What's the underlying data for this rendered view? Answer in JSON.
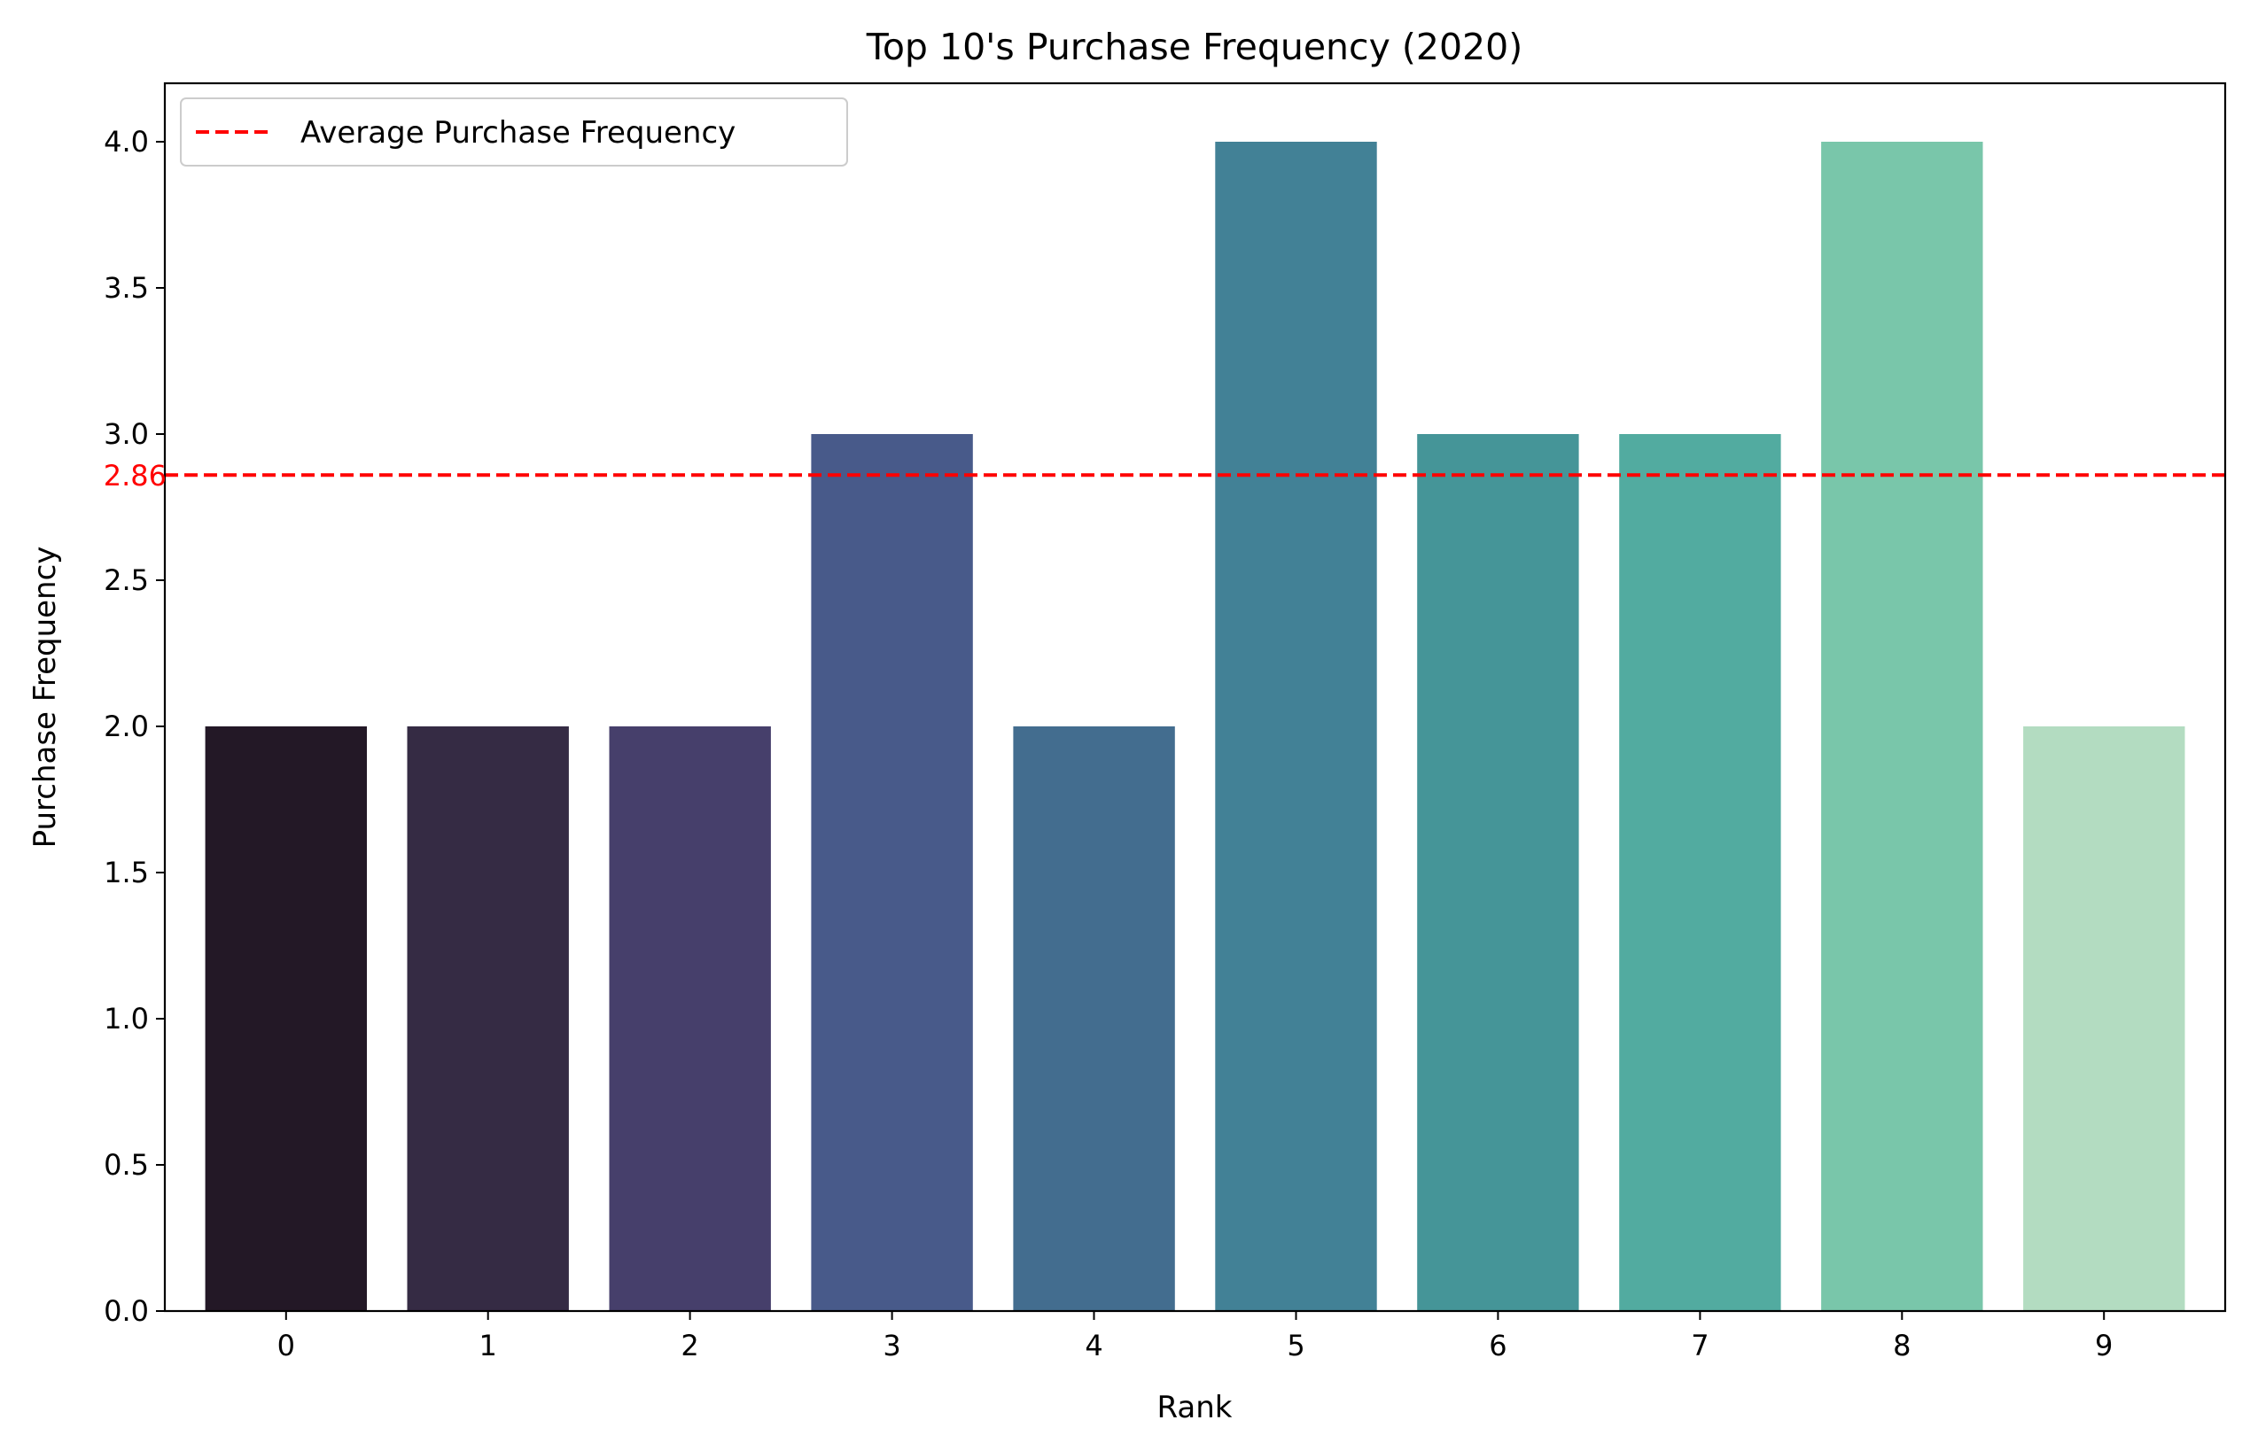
{
  "chart_data": {
    "type": "bar",
    "title": "Top 10's Purchase Frequency (2020)",
    "xlabel": "Rank",
    "ylabel": "Purchase Frequency",
    "categories": [
      "0",
      "1",
      "2",
      "3",
      "4",
      "5",
      "6",
      "7",
      "8",
      "9"
    ],
    "values": [
      2,
      2,
      2,
      3,
      2,
      4,
      3,
      3,
      4,
      2
    ],
    "bar_colors": [
      "#231826",
      "#352b44",
      "#463f6b",
      "#485a8a",
      "#436d8f",
      "#428196",
      "#459598",
      "#52aba0",
      "#79c6aa",
      "#b3dcc1"
    ],
    "ylim": [
      0,
      4.2
    ],
    "yticks": [
      "0.0",
      "0.5",
      "1.0",
      "1.5",
      "2.0",
      "2.5",
      "3.0",
      "3.5",
      "4.0"
    ],
    "grid": false,
    "reference_line": {
      "value": 2.86,
      "label": "2.86",
      "color": "#ff0000",
      "style": "dashed",
      "legend": "Average Purchase Frequency"
    },
    "legend_placement": "top-left"
  }
}
